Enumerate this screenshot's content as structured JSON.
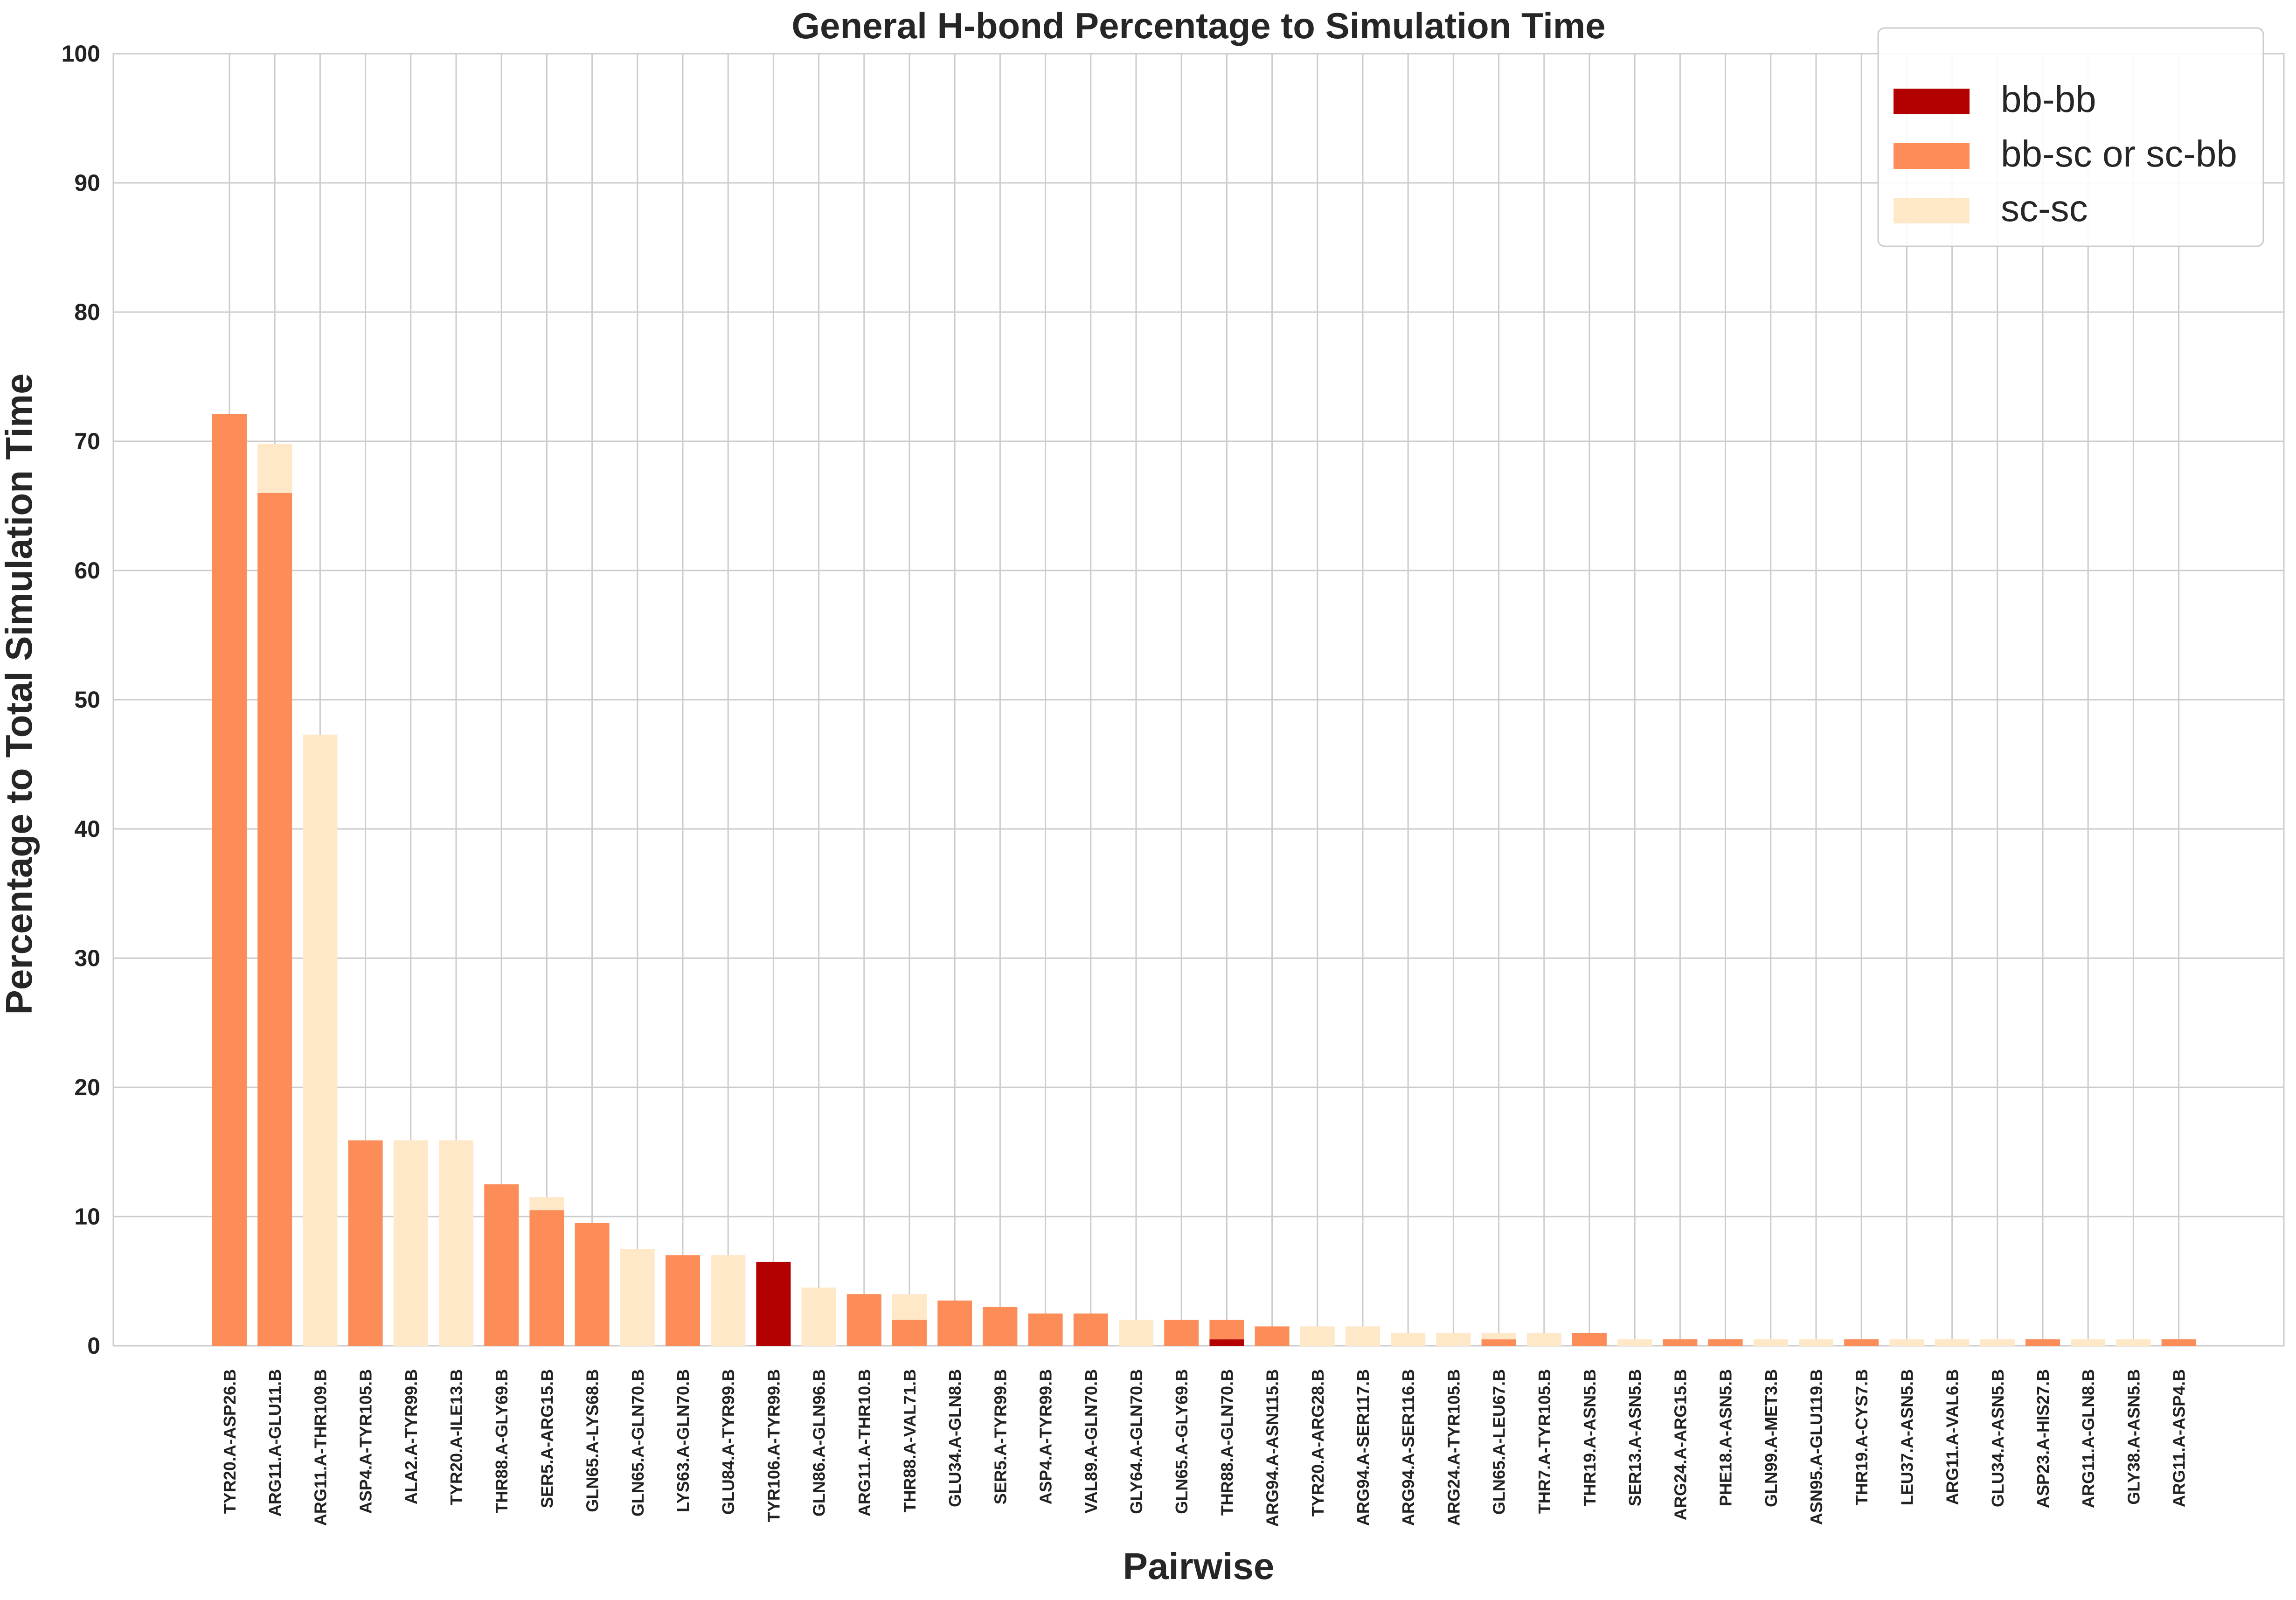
{
  "chart_data": {
    "type": "bar",
    "stacked": true,
    "title": "General H-bond Percentage to Simulation Time",
    "xlabel": "Pairwise",
    "ylabel": "Percentage to Total Simulation Time",
    "ylim": [
      0,
      100
    ],
    "yticks": [
      0,
      10,
      20,
      30,
      40,
      50,
      60,
      70,
      80,
      90,
      100
    ],
    "grid": true,
    "legend_position": "top-right",
    "categories": [
      "TYR20.A-ASP26.B",
      "ARG11.A-GLU11.B",
      "ARG11.A-THR109.B",
      "ASP4.A-TYR105.B",
      "ALA2.A-TYR99.B",
      "TYR20.A-ILE13.B",
      "THR88.A-GLY69.B",
      "SER5.A-ARG15.B",
      "GLN65.A-LYS68.B",
      "GLN65.A-GLN70.B",
      "LYS63.A-GLN70.B",
      "GLU84.A-TYR99.B",
      "TYR106.A-TYR99.B",
      "GLN86.A-GLN96.B",
      "ARG11.A-THR10.B",
      "THR88.A-VAL71.B",
      "GLU34.A-GLN8.B",
      "SER5.A-TYR99.B",
      "ASP4.A-TYR99.B",
      "VAL89.A-GLN70.B",
      "GLY64.A-GLN70.B",
      "GLN65.A-GLY69.B",
      "THR88.A-GLN70.B",
      "ARG94.A-ASN115.B",
      "TYR20.A-ARG28.B",
      "ARG94.A-SER117.B",
      "ARG94.A-SER116.B",
      "ARG24.A-TYR105.B",
      "GLN65.A-LEU67.B",
      "THR7.A-TYR105.B",
      "THR19.A-ASN5.B",
      "SER13.A-ASN5.B",
      "ARG24.A-ARG15.B",
      "PHE18.A-ASN5.B",
      "GLN99.A-MET3.B",
      "ASN95.A-GLU119.B",
      "THR19.A-CYS7.B",
      "LEU37.A-ASN5.B",
      "ARG11.A-VAL6.B",
      "GLU34.A-ASN5.B",
      "ASP23.A-HIS27.B",
      "ARG11.A-GLN8.B",
      "GLY38.A-ASN5.B",
      "ARG11.A-ASP4.B"
    ],
    "series": [
      {
        "name": "bb-bb",
        "color": "#b30000",
        "values": [
          0,
          0,
          0,
          0,
          0,
          0,
          0,
          0,
          0,
          0,
          0,
          0,
          6.5,
          0,
          0,
          0,
          0,
          0,
          0,
          0,
          0,
          0,
          0.5,
          0,
          0,
          0,
          0,
          0,
          0,
          0,
          0,
          0,
          0,
          0,
          0,
          0,
          0,
          0,
          0,
          0,
          0,
          0,
          0,
          0
        ]
      },
      {
        "name": "bb-sc or sc-bb",
        "color": "#fc8d59",
        "values": [
          72.1,
          66.0,
          0,
          15.9,
          0,
          0,
          12.5,
          10.5,
          9.5,
          0,
          7.0,
          0,
          0,
          0,
          4.0,
          2.0,
          3.5,
          3.0,
          2.5,
          2.5,
          0,
          2.0,
          1.5,
          1.5,
          0,
          0,
          0,
          0,
          0.5,
          0,
          1.0,
          0,
          0.5,
          0.5,
          0,
          0,
          0.5,
          0,
          0,
          0,
          0.5,
          0,
          0,
          0.5
        ]
      },
      {
        "name": "sc-sc",
        "color": "#fee8c8",
        "values": [
          0,
          3.8,
          47.3,
          0,
          15.9,
          15.9,
          0,
          1.0,
          0,
          7.5,
          0,
          7.0,
          0,
          4.5,
          0,
          2.0,
          0,
          0,
          0,
          0,
          2.0,
          0,
          0,
          0,
          1.5,
          1.5,
          1.0,
          1.0,
          0.5,
          1.0,
          0,
          0.5,
          0,
          0,
          0.5,
          0.5,
          0,
          0.5,
          0.5,
          0.5,
          0,
          0.5,
          0.5,
          0
        ]
      }
    ]
  }
}
